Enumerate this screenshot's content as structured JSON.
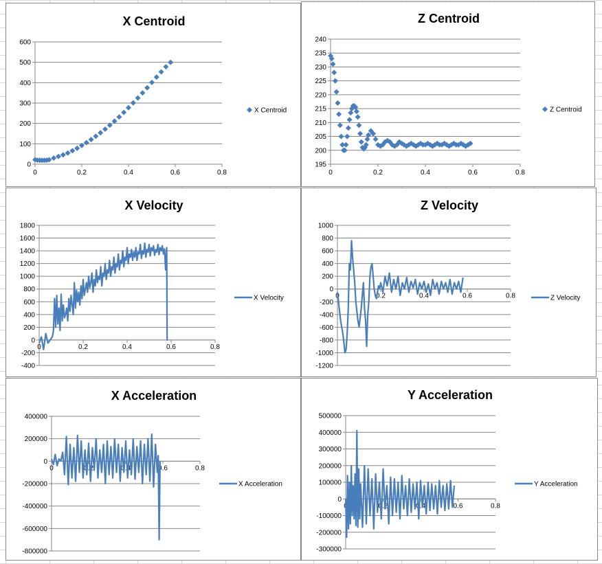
{
  "colors": {
    "series": "#4a7ebb",
    "gridline": "#868686",
    "axis": "#868686",
    "border": "#868686",
    "sheet_grid": "#d9d9d9"
  },
  "chart_data": [
    {
      "id": "x_centroid",
      "type": "scatter",
      "title": "X Centroid",
      "xlabel": "",
      "ylabel": "",
      "xlim": [
        0,
        0.8
      ],
      "ylim": [
        0,
        600
      ],
      "xticks": [
        0,
        0.2,
        0.4,
        0.6,
        0.8
      ],
      "yticks": [
        0,
        100,
        200,
        300,
        400,
        500,
        600
      ],
      "grid": true,
      "legend": "right",
      "marker": "diamond",
      "series": [
        {
          "name": "X Centroid",
          "x": [
            0.0,
            0.01,
            0.02,
            0.03,
            0.04,
            0.05,
            0.06,
            0.08,
            0.1,
            0.12,
            0.14,
            0.16,
            0.18,
            0.2,
            0.22,
            0.24,
            0.26,
            0.28,
            0.3,
            0.32,
            0.34,
            0.36,
            0.38,
            0.4,
            0.42,
            0.44,
            0.46,
            0.48,
            0.5,
            0.52,
            0.54,
            0.56,
            0.58
          ],
          "y": [
            22,
            20,
            19,
            19,
            19,
            20,
            22,
            30,
            38,
            46,
            55,
            66,
            78,
            92,
            106,
            121,
            137,
            154,
            172,
            191,
            211,
            232,
            254,
            277,
            301,
            325,
            350,
            375,
            401,
            427,
            453,
            478,
            500
          ]
        }
      ]
    },
    {
      "id": "z_centroid",
      "type": "scatter",
      "title": "Z Centroid",
      "xlabel": "",
      "ylabel": "",
      "xlim": [
        0,
        0.8
      ],
      "ylim": [
        195,
        240
      ],
      "xticks": [
        0,
        0.2,
        0.4,
        0.6,
        0.8
      ],
      "yticks": [
        195,
        200,
        205,
        210,
        215,
        220,
        225,
        230,
        235,
        240
      ],
      "grid": true,
      "legend": "right",
      "marker": "diamond",
      "series": [
        {
          "name": "Z Centroid",
          "x": [
            0.0,
            0.005,
            0.01,
            0.015,
            0.02,
            0.025,
            0.03,
            0.035,
            0.04,
            0.045,
            0.05,
            0.055,
            0.06,
            0.065,
            0.07,
            0.075,
            0.08,
            0.085,
            0.09,
            0.095,
            0.1,
            0.105,
            0.11,
            0.115,
            0.12,
            0.125,
            0.13,
            0.135,
            0.14,
            0.145,
            0.15,
            0.155,
            0.16,
            0.17,
            0.18,
            0.19,
            0.2,
            0.21,
            0.22,
            0.23,
            0.24,
            0.25,
            0.26,
            0.27,
            0.28,
            0.29,
            0.3,
            0.31,
            0.32,
            0.33,
            0.34,
            0.35,
            0.36,
            0.37,
            0.38,
            0.39,
            0.4,
            0.41,
            0.42,
            0.43,
            0.44,
            0.45,
            0.46,
            0.47,
            0.48,
            0.49,
            0.5,
            0.51,
            0.52,
            0.53,
            0.54,
            0.55,
            0.56,
            0.57,
            0.58,
            0.59
          ],
          "y": [
            234,
            233,
            231,
            228,
            225,
            221,
            217,
            213,
            209,
            205,
            202,
            200,
            200,
            202,
            205,
            208,
            211,
            213.5,
            215,
            216,
            216,
            215.5,
            214,
            212,
            209,
            206,
            203,
            201,
            200.5,
            201,
            202,
            204,
            205.5,
            207,
            206,
            204,
            202,
            201.5,
            202,
            203,
            203.5,
            203,
            202,
            201.5,
            202,
            203,
            202.5,
            202,
            201.5,
            202,
            202.5,
            202,
            201.5,
            202,
            202.5,
            202,
            202,
            202.5,
            202,
            201.5,
            202,
            202.5,
            202,
            202,
            202.5,
            202,
            201.5,
            202,
            202.5,
            202,
            202,
            202.5,
            202,
            201.5,
            202,
            202.5
          ]
        }
      ]
    },
    {
      "id": "x_velocity",
      "type": "line",
      "title": "X Velocity",
      "xlabel": "",
      "ylabel": "",
      "xlim": [
        0,
        0.8
      ],
      "ylim": [
        -400,
        1800
      ],
      "xticks": [
        0,
        0.2,
        0.4,
        0.6,
        0.8
      ],
      "yticks": [
        -400,
        -200,
        0,
        200,
        400,
        600,
        800,
        1000,
        1200,
        1400,
        1600,
        1800
      ],
      "grid": true,
      "legend": "right",
      "series": [
        {
          "name": "X Velocity",
          "x": [
            0.0,
            0.01,
            0.02,
            0.03,
            0.04,
            0.05,
            0.06,
            0.065,
            0.07,
            0.075,
            0.08,
            0.085,
            0.09,
            0.095,
            0.1,
            0.105,
            0.11,
            0.115,
            0.12,
            0.125,
            0.13,
            0.135,
            0.14,
            0.145,
            0.15,
            0.155,
            0.16,
            0.165,
            0.17,
            0.175,
            0.18,
            0.185,
            0.19,
            0.195,
            0.2,
            0.205,
            0.21,
            0.215,
            0.22,
            0.225,
            0.23,
            0.235,
            0.24,
            0.245,
            0.25,
            0.255,
            0.26,
            0.265,
            0.27,
            0.275,
            0.28,
            0.285,
            0.29,
            0.295,
            0.3,
            0.305,
            0.31,
            0.315,
            0.32,
            0.325,
            0.33,
            0.335,
            0.34,
            0.345,
            0.35,
            0.355,
            0.36,
            0.365,
            0.37,
            0.375,
            0.38,
            0.385,
            0.39,
            0.395,
            0.4,
            0.405,
            0.41,
            0.415,
            0.42,
            0.425,
            0.43,
            0.435,
            0.44,
            0.445,
            0.45,
            0.455,
            0.46,
            0.465,
            0.47,
            0.475,
            0.48,
            0.485,
            0.49,
            0.495,
            0.5,
            0.505,
            0.51,
            0.515,
            0.52,
            0.525,
            0.53,
            0.535,
            0.54,
            0.545,
            0.55,
            0.555,
            0.56,
            0.565,
            0.57,
            0.575,
            0.58,
            0.582,
            0.585
          ],
          "y": [
            -50,
            50,
            -150,
            100,
            -50,
            0,
            50,
            150,
            650,
            200,
            700,
            250,
            500,
            150,
            720,
            300,
            550,
            350,
            400,
            500,
            300,
            650,
            450,
            700,
            550,
            400,
            900,
            500,
            780,
            600,
            750,
            550,
            850,
            650,
            950,
            700,
            800,
            900,
            750,
            1000,
            820,
            900,
            1050,
            750,
            950,
            850,
            1100,
            900,
            1000,
            950,
            1150,
            850,
            1050,
            1000,
            1200,
            950,
            1100,
            1050,
            1250,
            1000,
            1150,
            1100,
            1300,
            1050,
            1200,
            1150,
            1350,
            1100,
            1250,
            1200,
            1400,
            1150,
            1300,
            1250,
            1450,
            1200,
            1350,
            1300,
            1420,
            1250,
            1380,
            1300,
            1450,
            1250,
            1380,
            1350,
            1500,
            1280,
            1400,
            1350,
            1520,
            1300,
            1420,
            1380,
            1500,
            1320,
            1450,
            1400,
            1480,
            1330,
            1420,
            1380,
            1500,
            1340,
            1450,
            1400,
            1480,
            1350,
            1430,
            1100,
            1450,
            0,
            0
          ]
        }
      ]
    },
    {
      "id": "z_velocity",
      "type": "line",
      "title": "Z Velocity",
      "xlabel": "",
      "ylabel": "",
      "xlim": [
        0,
        0.8
      ],
      "ylim": [
        -1200,
        1000
      ],
      "xticks": [
        0,
        0.2,
        0.4,
        0.6,
        0.8
      ],
      "yticks": [
        -1200,
        -1000,
        -800,
        -600,
        -400,
        -200,
        0,
        200,
        400,
        600,
        800,
        1000
      ],
      "grid": true,
      "legend": "right",
      "series": [
        {
          "name": "Z Velocity",
          "x": [
            0.0,
            0.005,
            0.01,
            0.015,
            0.02,
            0.025,
            0.03,
            0.035,
            0.04,
            0.045,
            0.05,
            0.055,
            0.06,
            0.065,
            0.07,
            0.075,
            0.08,
            0.085,
            0.09,
            0.095,
            0.1,
            0.105,
            0.11,
            0.115,
            0.12,
            0.125,
            0.13,
            0.135,
            0.14,
            0.145,
            0.15,
            0.155,
            0.16,
            0.165,
            0.17,
            0.175,
            0.18,
            0.185,
            0.19,
            0.195,
            0.2,
            0.21,
            0.22,
            0.23,
            0.24,
            0.25,
            0.26,
            0.27,
            0.28,
            0.29,
            0.3,
            0.31,
            0.32,
            0.33,
            0.34,
            0.35,
            0.36,
            0.37,
            0.38,
            0.39,
            0.4,
            0.41,
            0.42,
            0.43,
            0.44,
            0.45,
            0.46,
            0.47,
            0.48,
            0.49,
            0.5,
            0.51,
            0.52,
            0.53,
            0.54,
            0.55,
            0.56,
            0.57,
            0.58
          ],
          "y": [
            -50,
            -200,
            -350,
            -500,
            -600,
            -700,
            -850,
            -1000,
            -950,
            -700,
            -300,
            400,
            300,
            760,
            500,
            300,
            100,
            -200,
            -350,
            -500,
            -600,
            -450,
            -300,
            -100,
            100,
            -300,
            -500,
            -900,
            -400,
            -200,
            200,
            350,
            400,
            200,
            0,
            -100,
            -150,
            -50,
            50,
            0,
            100,
            -50,
            200,
            50,
            250,
            -50,
            150,
            0,
            200,
            -100,
            100,
            0,
            180,
            -50,
            120,
            20,
            150,
            -80,
            100,
            0,
            120,
            -50,
            80,
            -100,
            150,
            0,
            100,
            -80,
            120,
            0,
            100,
            -50,
            150,
            -80,
            100,
            0,
            120,
            -50,
            180
          ]
        }
      ]
    },
    {
      "id": "x_acceleration",
      "type": "line",
      "title": "X Acceleration",
      "xlabel": "",
      "ylabel": "",
      "xlim": [
        0,
        0.8
      ],
      "ylim": [
        -800000,
        400000
      ],
      "xticks": [
        0,
        0.2,
        0.4,
        0.6,
        0.8
      ],
      "yticks": [
        -800000,
        -600000,
        -400000,
        -200000,
        0,
        200000,
        400000
      ],
      "grid": true,
      "legend": "right",
      "series": [
        {
          "name": "X Acceleration",
          "x": [
            0.0,
            0.01,
            0.02,
            0.03,
            0.04,
            0.05,
            0.06,
            0.07,
            0.08,
            0.09,
            0.1,
            0.11,
            0.12,
            0.13,
            0.14,
            0.15,
            0.16,
            0.17,
            0.18,
            0.19,
            0.2,
            0.21,
            0.22,
            0.23,
            0.24,
            0.25,
            0.26,
            0.27,
            0.28,
            0.29,
            0.3,
            0.31,
            0.32,
            0.33,
            0.34,
            0.35,
            0.36,
            0.37,
            0.38,
            0.39,
            0.4,
            0.41,
            0.42,
            0.43,
            0.44,
            0.45,
            0.46,
            0.47,
            0.48,
            0.49,
            0.5,
            0.51,
            0.52,
            0.53,
            0.54,
            0.55,
            0.56,
            0.57,
            0.575,
            0.58,
            0.585
          ],
          "y": [
            20000,
            -30000,
            60000,
            -40000,
            20000,
            0,
            80000,
            -120000,
            220000,
            -210000,
            150000,
            -150000,
            120000,
            -180000,
            230000,
            -100000,
            180000,
            -150000,
            100000,
            -120000,
            160000,
            -180000,
            120000,
            -80000,
            200000,
            -150000,
            100000,
            -100000,
            150000,
            -200000,
            180000,
            -120000,
            130000,
            -150000,
            200000,
            -100000,
            150000,
            -180000,
            120000,
            -100000,
            180000,
            -150000,
            100000,
            -120000,
            200000,
            -160000,
            130000,
            -100000,
            180000,
            -200000,
            150000,
            -120000,
            200000,
            -180000,
            240000,
            -230000,
            150000,
            -100000,
            50000,
            -700000,
            0
          ]
        }
      ]
    },
    {
      "id": "y_acceleration",
      "type": "line",
      "title": "Y Acceleration",
      "xlabel": "",
      "ylabel": "",
      "xlim": [
        0,
        0.8
      ],
      "ylim": [
        -300000,
        500000
      ],
      "xticks": [
        0,
        0.2,
        0.4,
        0.6,
        0.8
      ],
      "yticks": [
        -300000,
        -200000,
        -100000,
        0,
        100000,
        200000,
        300000,
        400000,
        500000
      ],
      "grid": true,
      "legend": "right",
      "series": [
        {
          "name": "Y Acceleration",
          "x": [
            0.0,
            0.005,
            0.01,
            0.015,
            0.02,
            0.025,
            0.03,
            0.035,
            0.04,
            0.045,
            0.05,
            0.055,
            0.06,
            0.065,
            0.07,
            0.075,
            0.08,
            0.09,
            0.1,
            0.11,
            0.12,
            0.13,
            0.14,
            0.15,
            0.16,
            0.17,
            0.18,
            0.19,
            0.2,
            0.21,
            0.22,
            0.23,
            0.24,
            0.25,
            0.26,
            0.27,
            0.28,
            0.29,
            0.3,
            0.31,
            0.32,
            0.33,
            0.34,
            0.35,
            0.36,
            0.37,
            0.38,
            0.39,
            0.4,
            0.41,
            0.42,
            0.43,
            0.44,
            0.45,
            0.46,
            0.47,
            0.48,
            0.49,
            0.5,
            0.51,
            0.52,
            0.53,
            0.54,
            0.55,
            0.56,
            0.57,
            0.58
          ],
          "y": [
            0,
            -230000,
            140000,
            -180000,
            100000,
            -150000,
            200000,
            -100000,
            80000,
            -120000,
            150000,
            -160000,
            410000,
            -170000,
            180000,
            -120000,
            90000,
            -170000,
            200000,
            -150000,
            180000,
            -100000,
            120000,
            -180000,
            150000,
            -80000,
            100000,
            -120000,
            180000,
            -60000,
            80000,
            -150000,
            130000,
            -100000,
            120000,
            -80000,
            100000,
            -120000,
            140000,
            -60000,
            80000,
            -100000,
            120000,
            -80000,
            90000,
            -60000,
            100000,
            -120000,
            110000,
            -50000,
            80000,
            -90000,
            100000,
            -70000,
            90000,
            -60000,
            80000,
            -90000,
            110000,
            -50000,
            80000,
            -70000,
            90000,
            -60000,
            110000,
            -50000,
            80000
          ]
        }
      ]
    }
  ]
}
